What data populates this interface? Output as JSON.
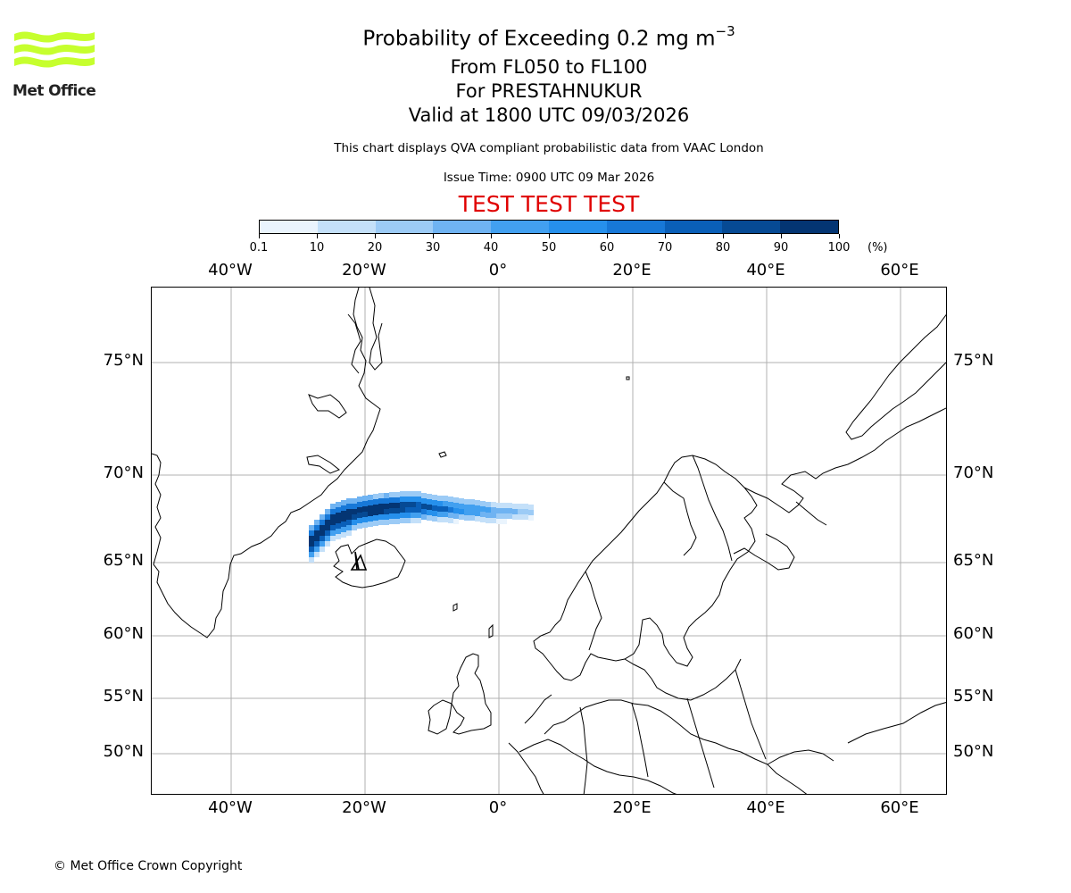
{
  "logo": {
    "text": "Met Office",
    "color": "#c6ff2e"
  },
  "title": {
    "main": "Probability of Exceeding 0.2 mg m",
    "superscript": "−3"
  },
  "subtitles": [
    "From FL050 to FL100",
    "For PRESTAHNUKUR",
    "Valid at 1800 UTC 09/03/2026"
  ],
  "note": "This chart displays QVA compliant probabilistic data from VAAC London",
  "issue_time": "Issue Time: 0900 UTC 09 Mar 2026",
  "test_banner": "TEST TEST TEST",
  "colorbar": {
    "tick_labels": [
      "0.1",
      "10",
      "20",
      "30",
      "40",
      "50",
      "60",
      "70",
      "80",
      "90",
      "100"
    ],
    "unit": "(%)",
    "colors": [
      "#eaf4fd",
      "#c4e0f9",
      "#9ccbf6",
      "#6fb3f2",
      "#42a0f0",
      "#2690ec",
      "#1778d8",
      "#0a5fb8",
      "#064a94",
      "#043573",
      "#022654"
    ]
  },
  "map": {
    "top_lon_labels": [
      "40°W",
      "20°W",
      "0°",
      "20°E",
      "40°E",
      "60°E"
    ],
    "bottom_lon_labels": [
      "40°W",
      "20°W",
      "0°",
      "20°E",
      "40°E",
      "60°E"
    ],
    "left_lat_labels": [
      "75°N",
      "70°N",
      "65°N",
      "60°N",
      "55°N",
      "50°N"
    ],
    "right_lat_labels": [
      "75°N",
      "70°N",
      "65°N",
      "60°N",
      "55°N",
      "50°N"
    ],
    "volcano": "PRESTAHNUKUR",
    "volcano_lon": -20.6,
    "volcano_lat": 64.6
  },
  "copyright": "© Met Office Crown Copyright"
}
